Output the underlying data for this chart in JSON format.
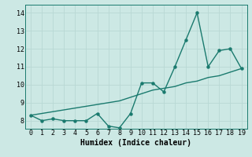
{
  "x": [
    0,
    1,
    2,
    3,
    4,
    5,
    6,
    7,
    8,
    9,
    10,
    11,
    12,
    13,
    14,
    15,
    16,
    17,
    18,
    19
  ],
  "y_data": [
    8.3,
    8.0,
    8.1,
    8.0,
    8.0,
    8.0,
    8.4,
    7.7,
    7.6,
    8.4,
    10.1,
    10.1,
    9.6,
    11.0,
    12.5,
    14.0,
    11.0,
    11.9,
    12.0,
    10.9
  ],
  "y_trend": [
    8.3,
    8.4,
    8.5,
    8.6,
    8.7,
    8.8,
    8.9,
    9.0,
    9.1,
    9.3,
    9.5,
    9.7,
    9.8,
    9.9,
    10.1,
    10.2,
    10.4,
    10.5,
    10.7,
    10.9
  ],
  "xlabel": "Humidex (Indice chaleur)",
  "ylim": [
    7.55,
    14.45
  ],
  "xlim": [
    -0.5,
    19.5
  ],
  "yticks": [
    8,
    9,
    10,
    11,
    12,
    13,
    14
  ],
  "xticks": [
    0,
    1,
    2,
    3,
    4,
    5,
    6,
    7,
    8,
    9,
    10,
    11,
    12,
    13,
    14,
    15,
    16,
    17,
    18,
    19
  ],
  "line_color": "#1a7a6e",
  "bg_color": "#cce8e4",
  "grid_color": "#b8d8d4",
  "marker": "o",
  "markersize": 2.2,
  "linewidth": 1.0,
  "tick_fontsize": 6.0,
  "xlabel_fontsize": 7.0,
  "font_family": "monospace"
}
